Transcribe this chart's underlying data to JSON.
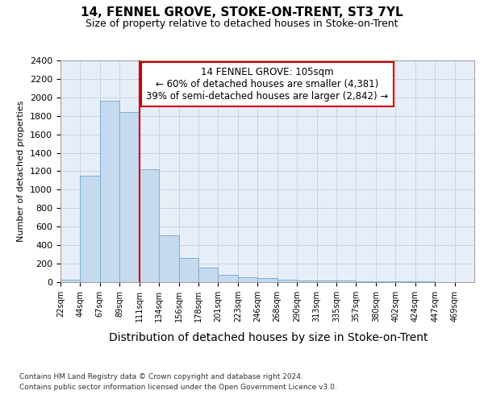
{
  "title": "14, FENNEL GROVE, STOKE-ON-TRENT, ST3 7YL",
  "subtitle": "Size of property relative to detached houses in Stoke-on-Trent",
  "xlabel": "Distribution of detached houses by size in Stoke-on-Trent",
  "ylabel": "Number of detached properties",
  "bar_values": [
    30,
    1150,
    1960,
    1840,
    1220,
    510,
    265,
    155,
    80,
    55,
    45,
    25,
    20,
    15,
    20,
    5,
    5,
    5,
    5,
    0,
    0
  ],
  "bar_labels": [
    "22sqm",
    "44sqm",
    "67sqm",
    "89sqm",
    "111sqm",
    "134sqm",
    "156sqm",
    "178sqm",
    "201sqm",
    "223sqm",
    "246sqm",
    "268sqm",
    "290sqm",
    "313sqm",
    "335sqm",
    "357sqm",
    "380sqm",
    "402sqm",
    "424sqm",
    "447sqm",
    "469sqm"
  ],
  "bar_color": "#c5d9ef",
  "bar_edge_color": "#7bafd4",
  "grid_color": "#c8d4e4",
  "background_color": "#e8eef8",
  "property_line_color": "#cc0000",
  "property_line_x": 4,
  "annotation_box_edge": "#cc0000",
  "annotation_line1": "14 FENNEL GROVE: 105sqm",
  "annotation_line2": "← 60% of detached houses are smaller (4,381)",
  "annotation_line3": "39% of semi-detached houses are larger (2,842) →",
  "ylim_max": 2400,
  "yticks": [
    0,
    200,
    400,
    600,
    800,
    1000,
    1200,
    1400,
    1600,
    1800,
    2000,
    2200,
    2400
  ],
  "footnote1": "Contains HM Land Registry data © Crown copyright and database right 2024.",
  "footnote2": "Contains public sector information licensed under the Open Government Licence v3.0.",
  "title_fontsize": 11,
  "subtitle_fontsize": 9,
  "xlabel_fontsize": 10,
  "ylabel_fontsize": 8,
  "tick_fontsize": 7,
  "ytick_fontsize": 8,
  "annot_fontsize": 8.5,
  "footnote_fontsize": 6.5
}
